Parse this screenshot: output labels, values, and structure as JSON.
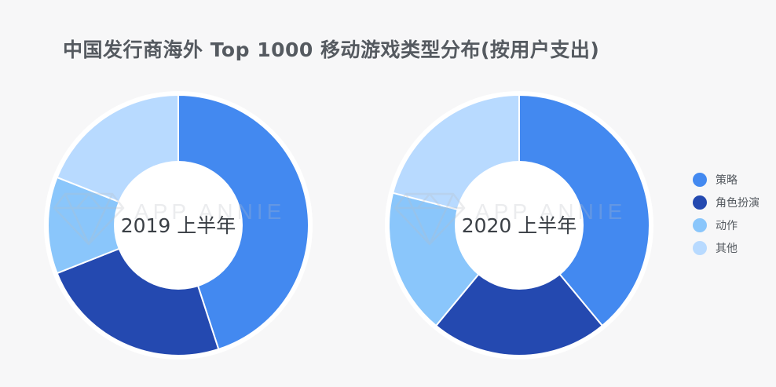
{
  "title": "中国发行商海外 Top 1000 移动游戏类型分布(按用户支出)",
  "watermark": "APP ANNIE",
  "colors": {
    "策略": "#4389f0",
    "角色扮演": "#2449b0",
    "动作": "#8ac6fb",
    "其他": "#b8daff"
  },
  "chart_data": [
    {
      "type": "pie",
      "title": "2019 上半年",
      "categories": [
        "策略",
        "角色扮演",
        "动作",
        "其他"
      ],
      "values": [
        45,
        24,
        12,
        19
      ],
      "unit": "%"
    },
    {
      "type": "pie",
      "title": "2020 上半年",
      "categories": [
        "策略",
        "角色扮演",
        "动作",
        "其他"
      ],
      "values": [
        39,
        22,
        18,
        21
      ],
      "unit": "%"
    }
  ],
  "legend": [
    {
      "label": "策略",
      "color": "#4389f0"
    },
    {
      "label": "角色扮演",
      "color": "#2449b0"
    },
    {
      "label": "动作",
      "color": "#8ac6fb"
    },
    {
      "label": "其他",
      "color": "#b8daff"
    }
  ]
}
